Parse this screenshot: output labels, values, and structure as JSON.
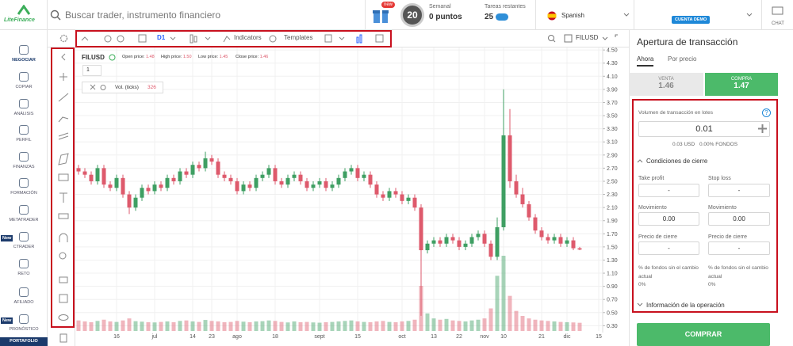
{
  "header": {
    "logo": "LiteFinance",
    "search": "Buscar trader, instrumento financiero",
    "new_badge": "new",
    "level": "20",
    "weekly_label": "Semanal",
    "weekly_points": "0 puntos",
    "tasks_label": "Tareas restantes",
    "tasks_count": "25",
    "language": "Spanish",
    "account": "CUENTA DEMO",
    "chat": "CHAT"
  },
  "sidebar": {
    "items": [
      "NEGOCIAR",
      "COPIAR",
      "ANÁLISIS",
      "PERFIL",
      "FINANZAS",
      "FORMACIÓN",
      "METATRADER",
      "CTRADER",
      "RETO",
      "AFILIADO",
      "PRONÓSTICO"
    ],
    "badge": "New",
    "portfolio": "PORTAFOLIO"
  },
  "toolbar": {
    "interval": "D1",
    "indicators": "Indicators",
    "templates": "Templates",
    "symbol": "FILUSD"
  },
  "legend": {
    "symbol": "FILUSD",
    "open_label": "Open price:",
    "open": "1.48",
    "high_label": "High price:",
    "high": "1.50",
    "low_label": "Low price:",
    "low": "1.45",
    "close_label": "Close price:",
    "close": "1.46",
    "multiplier": "1",
    "volume_label": "Vol. (ticks)"
  },
  "chart_data": {
    "type": "candlestick",
    "up_color": "#3f9f63",
    "down_color": "#de5a6c",
    "grid": true,
    "categories": [
      null,
      null,
      null,
      null,
      null,
      null,
      "16",
      null,
      null,
      null,
      null,
      null,
      "jul",
      null,
      null,
      null,
      null,
      null,
      "14",
      null,
      null,
      "23",
      null,
      null,
      null,
      "ago",
      null,
      null,
      null,
      null,
      null,
      "18",
      null,
      null,
      null,
      null,
      null,
      null,
      "sept",
      null,
      null,
      null,
      null,
      null,
      "15",
      null,
      null,
      null,
      null,
      null,
      null,
      "oct",
      null,
      null,
      null,
      null,
      "13",
      null,
      null,
      null,
      "22",
      null,
      null,
      null,
      "nov",
      null,
      null,
      "10",
      null,
      null,
      null,
      null,
      null,
      "21",
      null,
      null,
      null,
      "dic",
      null,
      null,
      null,
      null,
      "15"
    ],
    "open": [
      2.7,
      2.65,
      2.6,
      2.5,
      2.7,
      2.45,
      2.4,
      2.55,
      2.3,
      2.1,
      2.25,
      2.4,
      2.35,
      2.45,
      2.4,
      2.55,
      2.5,
      2.65,
      2.6,
      2.75,
      2.7,
      2.85,
      2.8,
      2.6,
      2.55,
      2.5,
      2.35,
      2.45,
      2.4,
      2.55,
      2.6,
      2.7,
      2.5,
      2.45,
      2.55,
      2.6,
      2.5,
      2.4,
      2.45,
      2.5,
      2.4,
      2.45,
      2.55,
      2.65,
      2.7,
      2.55,
      2.6,
      2.45,
      2.3,
      2.25,
      2.35,
      2.3,
      2.2,
      2.25,
      2.1,
      1.45,
      1.55,
      1.6,
      1.55,
      1.65,
      1.6,
      1.5,
      1.55,
      1.65,
      1.7,
      1.55,
      1.35,
      1.8,
      3.2,
      2.5,
      2.3,
      2.15,
      1.95,
      1.75,
      1.65,
      1.6,
      1.65,
      1.55,
      1.6,
      1.48,
      null,
      null,
      null
    ],
    "high": [
      2.75,
      2.7,
      2.65,
      2.75,
      2.75,
      2.5,
      2.6,
      2.6,
      2.35,
      2.3,
      2.45,
      2.45,
      2.5,
      2.5,
      2.6,
      2.6,
      2.7,
      2.7,
      2.8,
      2.8,
      2.95,
      2.9,
      2.85,
      2.65,
      2.6,
      2.55,
      2.5,
      2.5,
      2.6,
      2.65,
      2.75,
      2.75,
      2.55,
      2.6,
      2.65,
      2.65,
      2.55,
      2.5,
      2.55,
      2.55,
      2.5,
      2.6,
      2.7,
      2.75,
      2.75,
      2.65,
      2.65,
      2.5,
      2.35,
      2.4,
      2.4,
      2.35,
      2.3,
      2.3,
      2.15,
      1.6,
      1.65,
      1.65,
      1.7,
      1.7,
      1.65,
      1.6,
      1.7,
      1.75,
      1.75,
      1.6,
      1.95,
      3.9,
      3.6,
      2.6,
      2.4,
      2.2,
      2.0,
      1.8,
      1.7,
      1.7,
      1.7,
      1.65,
      1.65,
      1.5,
      null,
      null,
      null
    ],
    "low": [
      2.6,
      2.55,
      2.45,
      2.45,
      2.4,
      2.35,
      2.35,
      2.25,
      2.0,
      2.05,
      2.2,
      2.3,
      2.3,
      2.35,
      2.35,
      2.45,
      2.45,
      2.55,
      2.55,
      2.65,
      2.65,
      2.75,
      2.55,
      2.5,
      2.45,
      2.3,
      2.3,
      2.35,
      2.35,
      2.5,
      2.55,
      2.45,
      2.4,
      2.4,
      2.5,
      2.45,
      2.35,
      2.35,
      2.4,
      2.35,
      2.35,
      2.4,
      2.5,
      2.6,
      2.5,
      2.5,
      2.4,
      2.25,
      2.2,
      2.2,
      2.25,
      2.15,
      2.15,
      2.05,
      0.45,
      1.4,
      1.5,
      1.5,
      1.5,
      1.55,
      1.45,
      1.45,
      1.5,
      1.6,
      1.5,
      1.3,
      1.3,
      1.75,
      2.4,
      2.25,
      2.1,
      1.9,
      1.7,
      1.6,
      1.55,
      1.55,
      1.5,
      1.5,
      1.45,
      1.45,
      null,
      null,
      null
    ],
    "close": [
      2.65,
      2.6,
      2.5,
      2.7,
      2.45,
      2.4,
      2.55,
      2.3,
      2.1,
      2.25,
      2.4,
      2.35,
      2.45,
      2.4,
      2.55,
      2.5,
      2.65,
      2.6,
      2.75,
      2.7,
      2.85,
      2.8,
      2.6,
      2.55,
      2.5,
      2.35,
      2.45,
      2.4,
      2.55,
      2.6,
      2.7,
      2.5,
      2.45,
      2.55,
      2.6,
      2.5,
      2.4,
      2.45,
      2.5,
      2.4,
      2.45,
      2.55,
      2.65,
      2.7,
      2.55,
      2.6,
      2.45,
      2.3,
      2.25,
      2.35,
      2.3,
      2.2,
      2.25,
      2.1,
      1.45,
      1.55,
      1.6,
      1.55,
      1.65,
      1.6,
      1.5,
      1.55,
      1.65,
      1.7,
      1.55,
      1.35,
      1.8,
      3.2,
      2.5,
      2.3,
      2.15,
      1.95,
      1.75,
      1.65,
      1.6,
      1.65,
      1.55,
      1.6,
      1.48,
      1.46,
      null,
      null,
      null
    ],
    "volume": [
      420,
      380,
      350,
      400,
      450,
      380,
      360,
      420,
      500,
      390,
      370,
      350,
      340,
      360,
      380,
      350,
      400,
      420,
      380,
      360,
      440,
      400,
      380,
      350,
      360,
      400,
      370,
      350,
      380,
      390,
      420,
      400,
      360,
      340,
      380,
      350,
      360,
      340,
      330,
      350,
      360,
      380,
      400,
      420,
      380,
      360,
      350,
      380,
      400,
      360,
      350,
      380,
      400,
      450,
      1800,
      700,
      500,
      450,
      480,
      420,
      400,
      380,
      420,
      450,
      500,
      900,
      2200,
      3000,
      1400,
      800,
      600,
      500,
      450,
      420,
      400,
      380,
      360,
      350,
      340,
      326,
      null,
      null,
      null
    ],
    "ylim": [
      0.22,
      4.55
    ],
    "yticks": [
      {
        "value": 0.3,
        "label": "0.30"
      },
      {
        "value": 0.5,
        "label": "0.50"
      },
      {
        "value": 0.7,
        "label": "0.70"
      },
      {
        "value": 0.9,
        "label": "0.90"
      },
      {
        "value": 1.1,
        "label": "1.10"
      },
      {
        "value": 1.3,
        "label": "1.30"
      },
      {
        "value": 1.5,
        "label": "1.50"
      },
      {
        "value": 1.7,
        "label": "1.70"
      },
      {
        "value": 1.9,
        "label": "1.90"
      },
      {
        "value": 2.1,
        "label": "2.10"
      },
      {
        "value": 2.3,
        "label": "2.30"
      },
      {
        "value": 2.5,
        "label": "2.50"
      },
      {
        "value": 2.7,
        "label": "2.70"
      },
      {
        "value": 2.9,
        "label": "2.90"
      },
      {
        "value": 3.1,
        "label": "3.10"
      },
      {
        "value": 3.3,
        "label": "3.30"
      },
      {
        "value": 3.5,
        "label": "3.50"
      },
      {
        "value": 3.7,
        "label": "3.70"
      },
      {
        "value": 3.9,
        "label": "3.90"
      },
      {
        "value": 4.1,
        "label": "4.10"
      },
      {
        "value": 4.3,
        "label": "4.30"
      },
      {
        "value": 4.5,
        "label": "4.50"
      }
    ]
  },
  "order_panel": {
    "title": "Apertura de transacción",
    "tab_now": "Ahora",
    "tab_price": "Por precio",
    "sell_label": "VENTA",
    "sell_price": "1.46",
    "buy_label": "COMPRA",
    "buy_price": "1.47",
    "volume_label": "Volumen de transacción en lotes",
    "help": "?",
    "volume": "0.01",
    "cost": "0.03 USD",
    "funds": "0.00% FONDOS",
    "close_conditions": "Condiciones de cierre",
    "take_profit": "Take profit",
    "stop_loss": "Stop loss",
    "tp_value": "-",
    "sl_value": "-",
    "move_left": "Movimiento",
    "move_right": "Movimiento",
    "move_left_value": "0.00",
    "move_right_value": "0.00",
    "close_price_left": "Precio de cierre",
    "close_price_right": "Precio de cierre",
    "cp_left_value": "-",
    "cp_right_value": "-",
    "funds_change_left": "% de fondos sin el cambio actual",
    "funds_change_right": "% de fondos sin el cambio actual",
    "funds_change_left_value": "0%",
    "funds_change_right_value": "0%",
    "operation_info": "Información de la operación",
    "buy_button": "COMPRAR"
  }
}
